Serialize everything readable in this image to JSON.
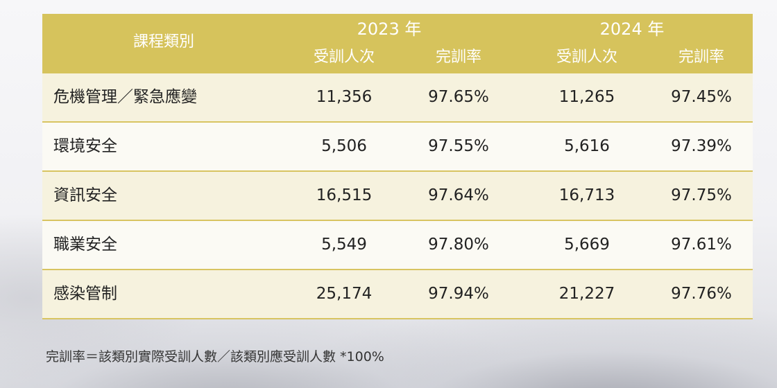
{
  "table": {
    "header": {
      "category": "課程類別",
      "year1": "2023 年",
      "year2": "2024 年",
      "sub": [
        "受訓人次",
        "完訓率",
        "受訓人次",
        "完訓率"
      ]
    },
    "rows": [
      {
        "name": "危機管理／緊急應變",
        "v": [
          "11,356",
          "97.65%",
          "11,265",
          "97.45%"
        ]
      },
      {
        "name": "環境安全",
        "v": [
          "5,506",
          "97.55%",
          "5,616",
          "97.39%"
        ]
      },
      {
        "name": "資訊安全",
        "v": [
          "16,515",
          "97.64%",
          "16,713",
          "97.75%"
        ]
      },
      {
        "name": "職業安全",
        "v": [
          "5,549",
          "97.80%",
          "5,669",
          "97.61%"
        ]
      },
      {
        "name": "感染管制",
        "v": [
          "25,174",
          "97.94%",
          "21,227",
          "97.76%"
        ]
      }
    ]
  },
  "footnote": "完訓率＝該類別實際受訓人數／該類別應受訓人數 *100%",
  "colors": {
    "header_bg": "#d6c35c",
    "row_odd": "#f6f2de",
    "row_even": "#fbfaf4",
    "divider": "#d8c461"
  }
}
